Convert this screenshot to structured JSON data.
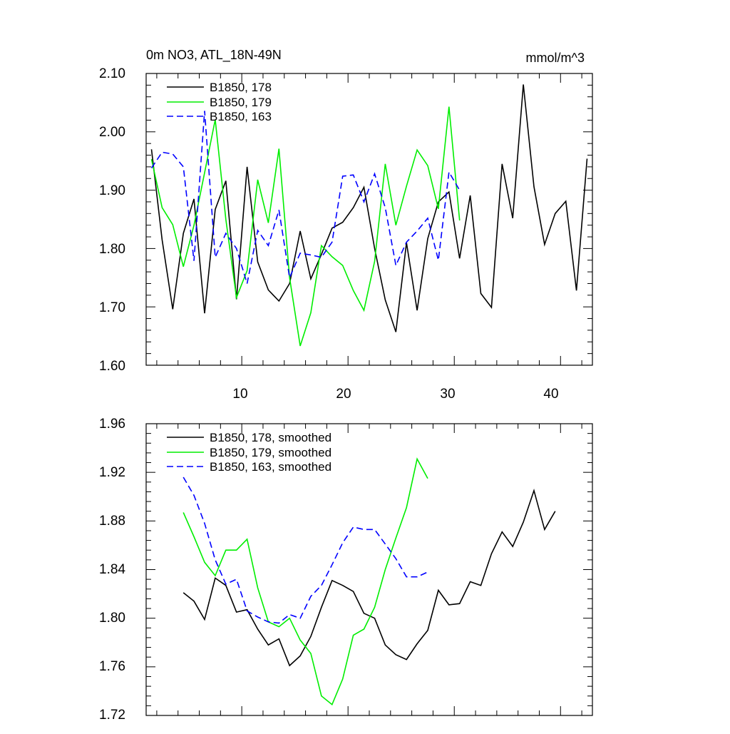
{
  "chart_data": [
    {
      "type": "line",
      "title": "0m NO3, ATL_18N-49N",
      "units": "mmol/m^3",
      "xlabel": "",
      "ylabel": "",
      "xlim": [
        1,
        43
      ],
      "ylim": [
        1.6,
        2.1
      ],
      "xticks": [
        10,
        20,
        30,
        40
      ],
      "xtick_labels": [
        "10",
        "20",
        "30",
        "40"
      ],
      "yticks": [
        1.6,
        1.7,
        1.8,
        1.9,
        2.0,
        2.1
      ],
      "ytick_labels": [
        "1.60",
        "1.70",
        "1.80",
        "1.90",
        "2.00",
        "2.10"
      ],
      "legend_position": "top-left",
      "series": [
        {
          "name": "B1850, 178",
          "color": "#000000",
          "dash": "solid",
          "x": [
            1.5,
            2.5,
            3.5,
            4.5,
            5.5,
            6.5,
            7.5,
            8.5,
            9.5,
            10.5,
            11.5,
            12.5,
            13.5,
            14.5,
            15.5,
            16.5,
            17.5,
            18.5,
            19.5,
            20.5,
            21.5,
            22.5,
            23.5,
            24.5,
            25.5,
            26.5,
            27.5,
            28.5,
            29.5,
            30.5,
            31.5,
            32.5,
            33.5,
            34.5,
            35.5,
            36.5,
            37.5,
            38.5,
            39.5,
            40.5,
            41.5,
            42.5
          ],
          "values": [
            1.97,
            1.815,
            1.696,
            1.826,
            1.885,
            1.689,
            1.867,
            1.916,
            1.713,
            1.94,
            1.777,
            1.729,
            1.71,
            1.74,
            1.83,
            1.748,
            1.79,
            1.835,
            1.845,
            1.87,
            1.905,
            1.8,
            1.712,
            1.657,
            1.81,
            1.694,
            1.817,
            1.88,
            1.897,
            1.783,
            1.891,
            1.723,
            1.699,
            1.945,
            1.852,
            2.081,
            1.906,
            1.807,
            1.86,
            1.881,
            1.728,
            1.954
          ]
        },
        {
          "name": "B1850, 179",
          "color": "#00ee00",
          "dash": "solid",
          "x": [
            1.5,
            2.5,
            3.5,
            4.5,
            5.5,
            6.5,
            7.5,
            8.5,
            9.5,
            10.5,
            11.5,
            12.5,
            13.5,
            14.5,
            15.5,
            16.5,
            17.5,
            18.5,
            19.5,
            20.5,
            21.5,
            22.5,
            23.5,
            24.5,
            25.5,
            26.5,
            27.5,
            28.5,
            29.5,
            30.5
          ],
          "values": [
            1.953,
            1.87,
            1.841,
            1.769,
            1.84,
            1.93,
            2.021,
            1.85,
            1.716,
            1.762,
            1.918,
            1.844,
            1.971,
            1.75,
            1.633,
            1.69,
            1.805,
            1.786,
            1.771,
            1.728,
            1.694,
            1.778,
            1.945,
            1.84,
            1.907,
            1.969,
            1.942,
            1.868,
            2.043,
            1.848
          ]
        },
        {
          "name": "B1850, 163",
          "color": "#0000ff",
          "dash": "dashed",
          "x": [
            1.5,
            2.5,
            3.5,
            4.5,
            5.5,
            6.5,
            7.5,
            8.5,
            9.5,
            10.5,
            11.5,
            12.5,
            13.5,
            14.5,
            15.5,
            16.5,
            17.5,
            18.5,
            19.5,
            20.5,
            21.5,
            22.5,
            23.5,
            24.5,
            25.5,
            26.5,
            27.5,
            28.5,
            29.5,
            30.5
          ],
          "values": [
            1.938,
            1.965,
            1.962,
            1.94,
            1.779,
            2.036,
            1.785,
            1.826,
            1.8,
            1.74,
            1.831,
            1.805,
            1.866,
            1.75,
            1.792,
            1.789,
            1.785,
            1.811,
            1.924,
            1.926,
            1.88,
            1.928,
            1.87,
            1.771,
            1.811,
            1.83,
            1.852,
            1.78,
            1.931,
            1.9
          ]
        }
      ]
    },
    {
      "type": "line",
      "title": "",
      "xlabel": "",
      "ylabel": "",
      "xlim": [
        1,
        43
      ],
      "ylim": [
        1.72,
        1.96
      ],
      "xticks": [
        10,
        20,
        30,
        40
      ],
      "xtick_labels": [],
      "yticks": [
        1.72,
        1.76,
        1.8,
        1.84,
        1.88,
        1.92,
        1.96
      ],
      "ytick_labels": [
        "1.72",
        "1.76",
        "1.80",
        "1.84",
        "1.88",
        "1.92",
        "1.96"
      ],
      "legend_position": "top-left",
      "series": [
        {
          "name": "B1850, 178, smoothed",
          "color": "#000000",
          "dash": "solid",
          "x": [
            4.5,
            5.5,
            6.5,
            7.5,
            8.5,
            9.5,
            10.5,
            11.5,
            12.5,
            13.5,
            14.5,
            15.5,
            16.5,
            17.5,
            18.5,
            19.5,
            20.5,
            21.5,
            22.5,
            23.5,
            24.5,
            25.5,
            26.5,
            27.5,
            28.5,
            29.5,
            30.5,
            31.5,
            32.5,
            33.5,
            34.5,
            35.5,
            36.5,
            37.5,
            38.5,
            39.5
          ],
          "values": [
            1.821,
            1.814,
            1.799,
            1.833,
            1.827,
            1.805,
            1.807,
            1.791,
            1.778,
            1.783,
            1.761,
            1.769,
            1.785,
            1.809,
            1.831,
            1.827,
            1.822,
            1.804,
            1.8,
            1.778,
            1.77,
            1.766,
            1.779,
            1.79,
            1.823,
            1.811,
            1.812,
            1.83,
            1.827,
            1.853,
            1.871,
            1.859,
            1.879,
            1.905,
            1.873,
            1.888
          ]
        },
        {
          "name": "B1850, 179, smoothed",
          "color": "#00ee00",
          "dash": "solid",
          "x": [
            4.5,
            5.5,
            6.5,
            7.5,
            8.5,
            9.5,
            10.5,
            11.5,
            12.5,
            13.5,
            14.5,
            15.5,
            16.5,
            17.5,
            18.5,
            19.5,
            20.5,
            21.5,
            22.5,
            23.5,
            24.5,
            25.5,
            26.5,
            27.5
          ],
          "values": [
            1.887,
            1.867,
            1.846,
            1.835,
            1.856,
            1.856,
            1.865,
            1.825,
            1.797,
            1.793,
            1.8,
            1.782,
            1.771,
            1.736,
            1.729,
            1.75,
            1.786,
            1.791,
            1.809,
            1.84,
            1.866,
            1.891,
            1.931,
            1.915
          ]
        },
        {
          "name": "B1850, 163, smoothed",
          "color": "#0000ff",
          "dash": "dashed",
          "x": [
            4.5,
            5.5,
            6.5,
            7.5,
            8.5,
            9.5,
            10.5,
            11.5,
            12.5,
            13.5,
            14.5,
            15.5,
            16.5,
            17.5,
            18.5,
            19.5,
            20.5,
            21.5,
            22.5,
            23.5,
            24.5,
            25.5,
            26.5,
            27.5
          ],
          "values": [
            1.916,
            1.901,
            1.878,
            1.848,
            1.828,
            1.832,
            1.806,
            1.801,
            1.797,
            1.796,
            1.803,
            1.8,
            1.818,
            1.827,
            1.844,
            1.862,
            1.875,
            1.873,
            1.873,
            1.861,
            1.849,
            1.834,
            1.834,
            1.838
          ]
        }
      ]
    }
  ]
}
